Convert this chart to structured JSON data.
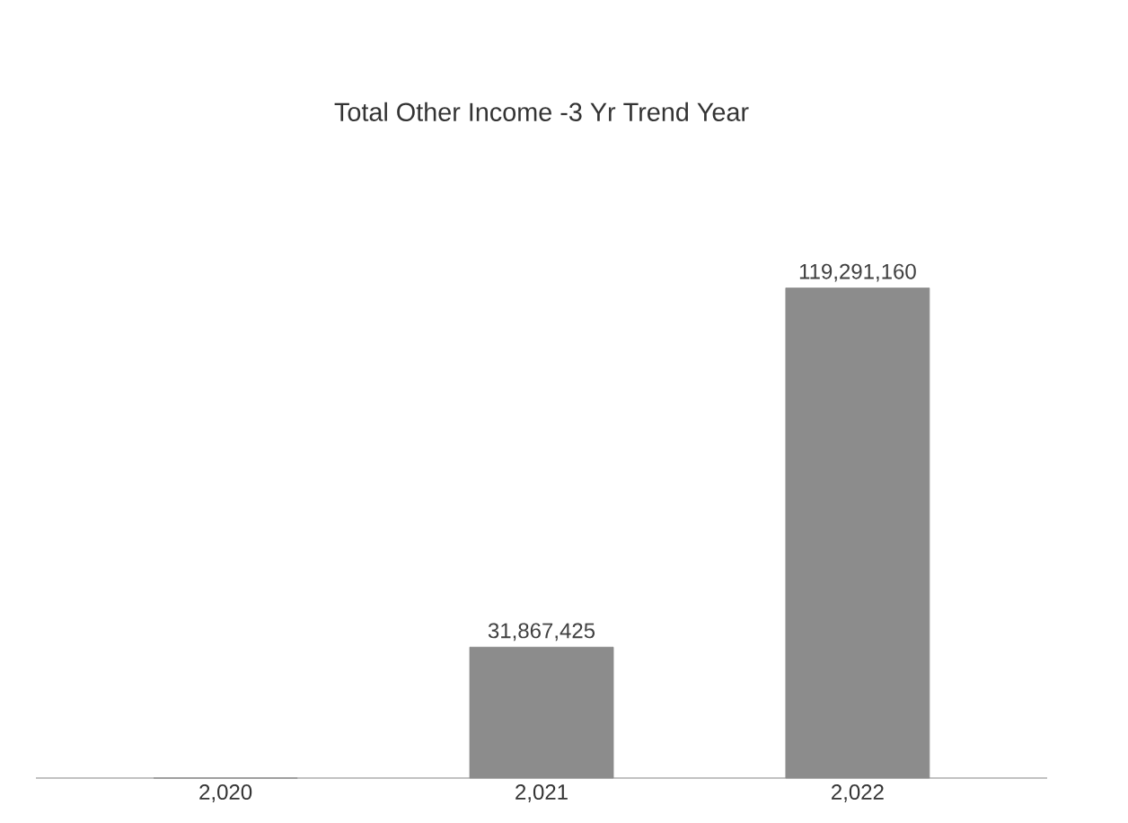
{
  "chart_data": {
    "type": "bar",
    "title": "Total Other Income -3 Yr Trend Year",
    "categories": [
      "2,020",
      "2,021",
      "2,022"
    ],
    "values": [
      0,
      31867425,
      119291160
    ],
    "value_labels": [
      null,
      "31,867,425",
      "119,291,160"
    ],
    "color": "#8c8c8c"
  }
}
